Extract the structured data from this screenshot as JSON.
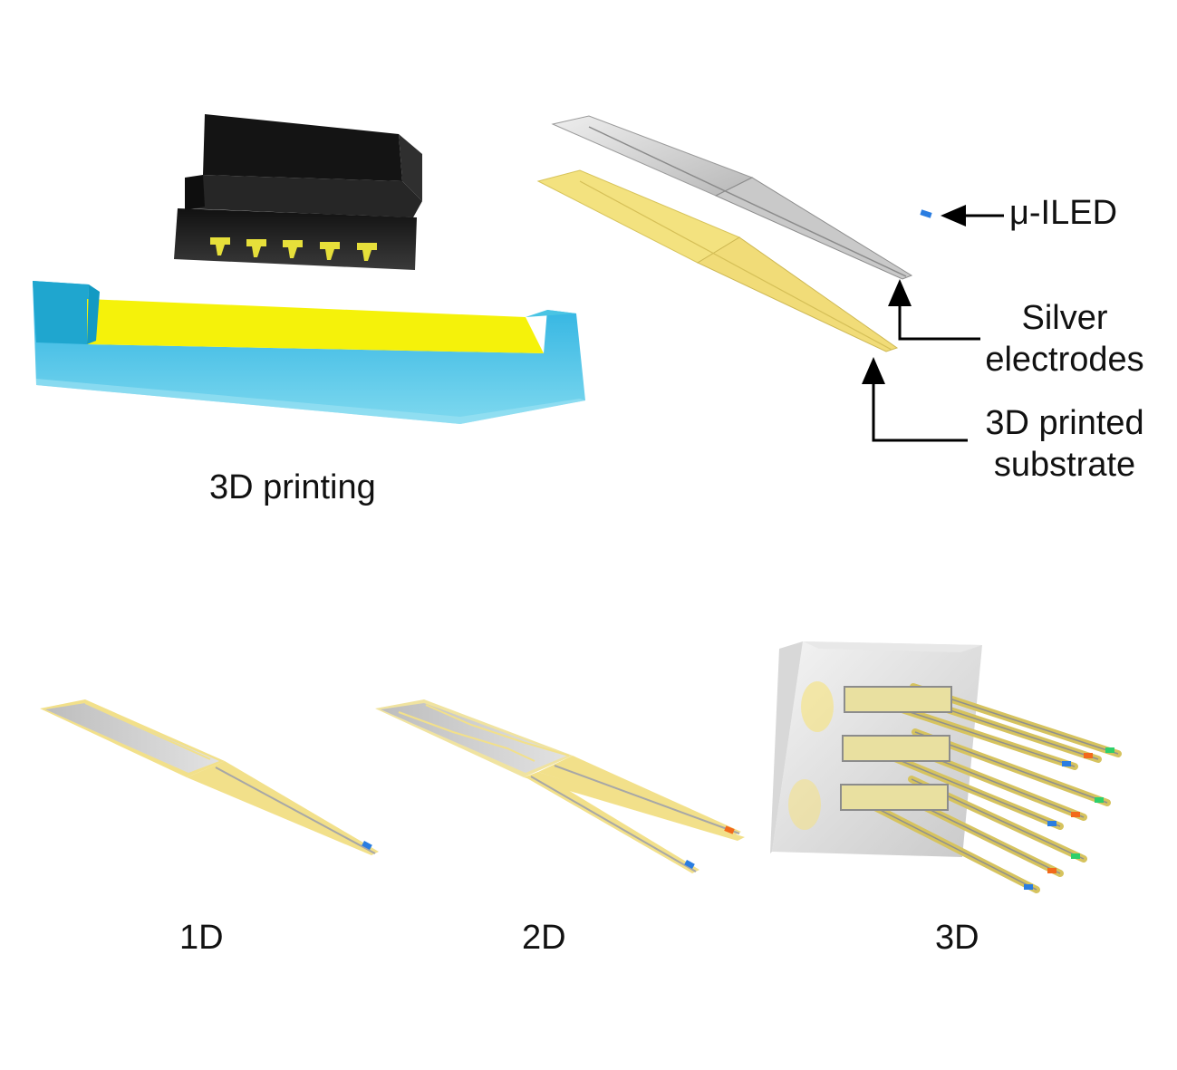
{
  "labels": {
    "printing": "3D printing",
    "uiled": "μ-ILED",
    "silver_line1": "Silver",
    "silver_line2": "electrodes",
    "substrate_line1": "3D printed",
    "substrate_line2": "substrate",
    "one_d": "1D",
    "two_d": "2D",
    "three_d": "3D"
  },
  "colors": {
    "print_head": "#2b2b2b",
    "resin_yellow": "#f5f20a",
    "vat_cyan": "#25b4d6",
    "silver": "#cfcfcf",
    "substrate": "#f2e08a",
    "led_blue": "#2a7de1",
    "led_orange": "#f26a1b",
    "led_green": "#2fcf6b"
  }
}
